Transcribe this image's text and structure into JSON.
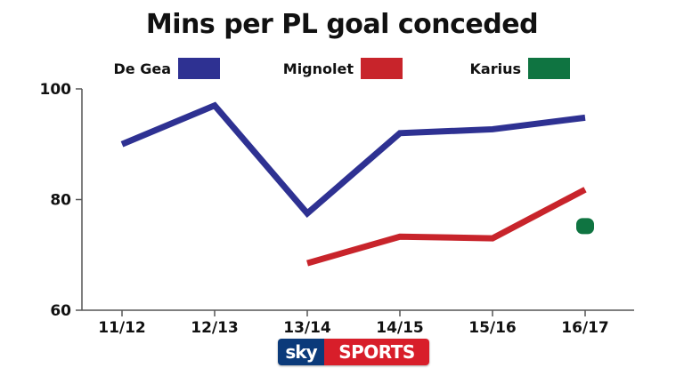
{
  "chart_data": {
    "type": "line",
    "title": "Mins per PL goal conceded",
    "categories": [
      "11/12",
      "12/13",
      "13/14",
      "14/15",
      "15/16",
      "16/17"
    ],
    "ylim": [
      60,
      100
    ],
    "yticks": [
      60,
      80,
      100
    ],
    "grid": false,
    "legend_position": "top",
    "series": [
      {
        "name": "De Gea",
        "color": "#2e3192",
        "values": [
          90,
          97,
          77.5,
          92,
          92.7,
          94.8
        ]
      },
      {
        "name": "Mignolet",
        "color": "#c8242b",
        "values": [
          null,
          null,
          68.5,
          73.3,
          73,
          81.8
        ]
      },
      {
        "name": "Karius",
        "color": "#0f7441",
        "values": [
          null,
          null,
          null,
          null,
          null,
          75.2
        ]
      }
    ]
  },
  "brand": {
    "left": "sky",
    "right": "SPORTS"
  }
}
